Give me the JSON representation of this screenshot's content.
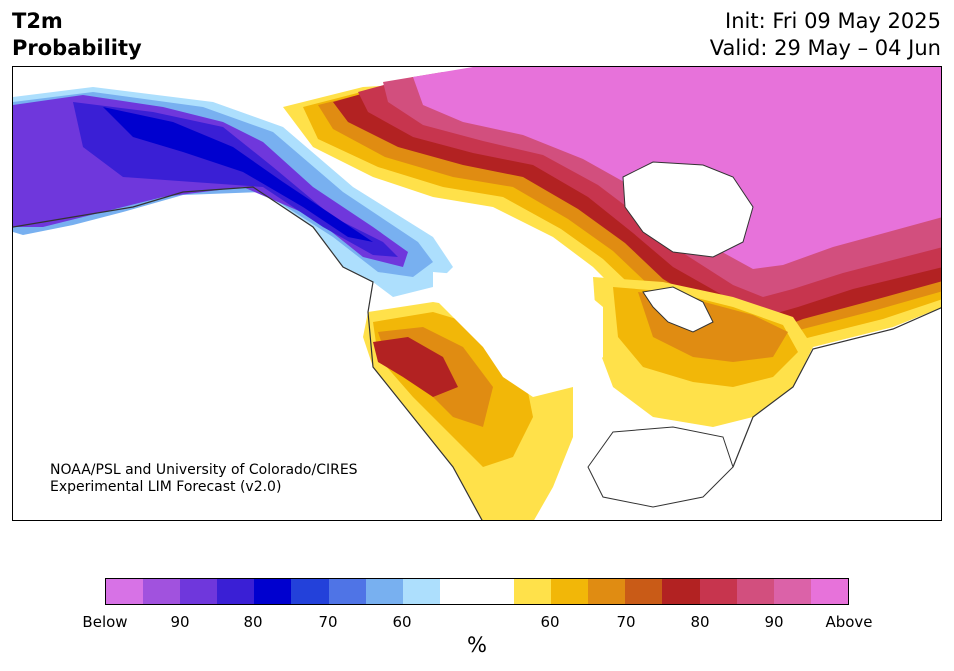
{
  "title": {
    "left_line1": "T2m",
    "left_line2": "Probability",
    "right_line1": "Init: Fri 09 May 2025",
    "right_line2": "Valid: 29 May – 04 Jun"
  },
  "credit": {
    "line1": "NOAA/PSL and University of Colorado/CIRES",
    "line2": "Experimental LIM Forecast (v2.0)"
  },
  "colorbar": {
    "colors": [
      "#d772e6",
      "#a152de",
      "#6f37dc",
      "#3a1fd5",
      "#0000cf",
      "#2341da",
      "#4f74e6",
      "#78b0f0",
      "#addffd",
      "#ffffff",
      "#ffffff",
      "#ffe14a",
      "#f2b708",
      "#e08c12",
      "#c95b17",
      "#b22222",
      "#c7354e",
      "#d24f7e",
      "#db62a8",
      "#e772da"
    ],
    "tick_labels": [
      "Below",
      "90",
      "80",
      "70",
      "60",
      "60",
      "70",
      "80",
      "90",
      "Above"
    ],
    "unit": "%"
  },
  "map": {
    "colors": {
      "below_strong": "#0000cf",
      "below_med": "#3a1fd5",
      "below_weak": "#6f37dc",
      "below_light": "#78b0f0",
      "below_faint": "#addffd",
      "above_faint": "#ffe14a",
      "above_light": "#f2b708",
      "above_med": "#e08c12",
      "above_strong": "#c95b17",
      "above_red": "#b22222",
      "above_crimson": "#c7354e",
      "above_pink": "#d24f7e",
      "above_magenta": "#e772da"
    }
  }
}
